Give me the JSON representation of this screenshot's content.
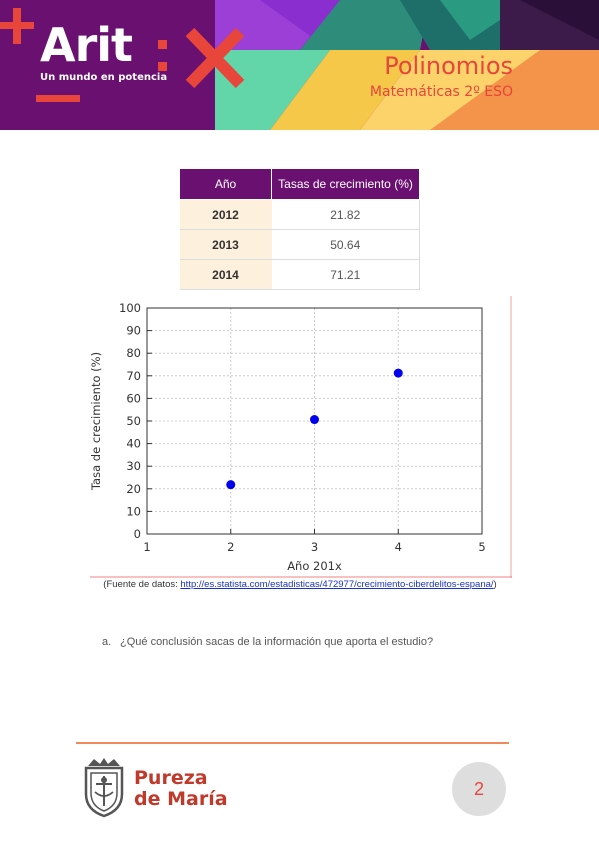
{
  "header": {
    "logo": "Arit",
    "logo_tagline": "Un mundo en potencia",
    "title": "Polinomios",
    "subtitle": "Matemáticas 2º ESO"
  },
  "table": {
    "headers": [
      "Año",
      "Tasas de crecimiento (%)"
    ],
    "rows": [
      {
        "year": "2012",
        "rate": "21.82"
      },
      {
        "year": "2013",
        "rate": "50.64"
      },
      {
        "year": "2014",
        "rate": "71.21"
      }
    ]
  },
  "chart_data": {
    "type": "scatter",
    "x": [
      2,
      3,
      4
    ],
    "y": [
      21.82,
      50.64,
      71.21
    ],
    "xlabel": "Año 201x",
    "ylabel": "Tasa de crecimiento (%)",
    "xlim": [
      1,
      5
    ],
    "ylim": [
      0,
      100
    ],
    "xticks": [
      1,
      2,
      3,
      4,
      5
    ],
    "yticks": [
      0,
      10,
      20,
      30,
      40,
      50,
      60,
      70,
      80,
      90,
      100
    ],
    "grid": true,
    "point_color": "#0000ee"
  },
  "source": {
    "prefix": "(Fuente de datos: ",
    "url": "http://es.statista.com/estadisticas/472977/crecimiento-ciberdelitos-espana/",
    "suffix": ")"
  },
  "question": {
    "letter": "a.",
    "text": "¿Qué conclusión sacas de la información que aporta el estudio?"
  },
  "footer": {
    "brand_line1": "Pureza",
    "brand_line2": "de María",
    "page_number": "2"
  },
  "colors": {
    "brand_purple": "#6a1070",
    "accent_red": "#e8453b",
    "orange": "#f08a5d"
  }
}
